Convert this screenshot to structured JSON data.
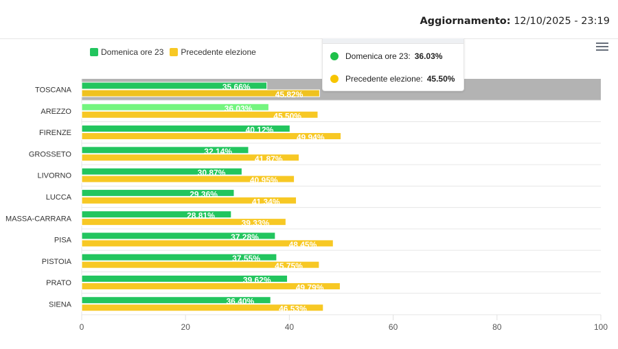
{
  "header": {
    "update_label": "Aggiornamento:",
    "update_value": "12/10/2025 - 23:19"
  },
  "colors": {
    "current": "#22c55e",
    "previous": "#f7c824",
    "highlight_current": "#74f57f",
    "hover_band": "#b3b3b3"
  },
  "legend": [
    {
      "label": "Domenica ore 23",
      "color": "#22c55e"
    },
    {
      "label": "Precedente elezione",
      "color": "#f7c824"
    }
  ],
  "menu": {
    "icon": "hamburger-menu-icon"
  },
  "tooltip": {
    "rows": [
      {
        "label": "Domenica ore 23:",
        "value": "36.03%",
        "color": "#1fc04a"
      },
      {
        "label": "Precedente elezione:",
        "value": "45.50%",
        "color": "#f7c500"
      }
    ]
  },
  "chart_data": {
    "type": "bar",
    "orientation": "horizontal",
    "categories": [
      "TOSCANA",
      "AREZZO",
      "FIRENZE",
      "GROSSETO",
      "LIVORNO",
      "LUCCA",
      "MASSA-CARRARA",
      "PISA",
      "PISTOIA",
      "PRATO",
      "SIENA"
    ],
    "series": [
      {
        "name": "Domenica ore 23",
        "values": [
          35.66,
          36.03,
          40.12,
          32.14,
          30.87,
          29.36,
          28.81,
          37.28,
          37.55,
          39.62,
          36.4
        ],
        "labels": [
          "35.66%",
          "36.03%",
          "40.12%",
          "32.14%",
          "30.87%",
          "29.36%",
          "28.81%",
          "37.28%",
          "37.55%",
          "39.62%",
          "36.40%"
        ]
      },
      {
        "name": "Precedente elezione",
        "values": [
          45.82,
          45.5,
          49.94,
          41.87,
          40.95,
          41.34,
          39.33,
          48.45,
          45.75,
          49.79,
          46.53
        ],
        "labels": [
          "45.82%",
          "45.50%",
          "49.94%",
          "41.87%",
          "40.95%",
          "41.34%",
          "39.33%",
          "48.45%",
          "45.75%",
          "49.79%",
          "46.53%"
        ]
      }
    ],
    "title": "",
    "xlabel": "",
    "ylabel": "",
    "xlim": [
      0,
      100
    ],
    "xticks": [
      "0",
      "20",
      "40",
      "60",
      "80",
      "100"
    ],
    "grid": true,
    "legend_position": "top-left",
    "hovered_category": "TOSCANA",
    "highlighted_category": "AREZZO"
  }
}
